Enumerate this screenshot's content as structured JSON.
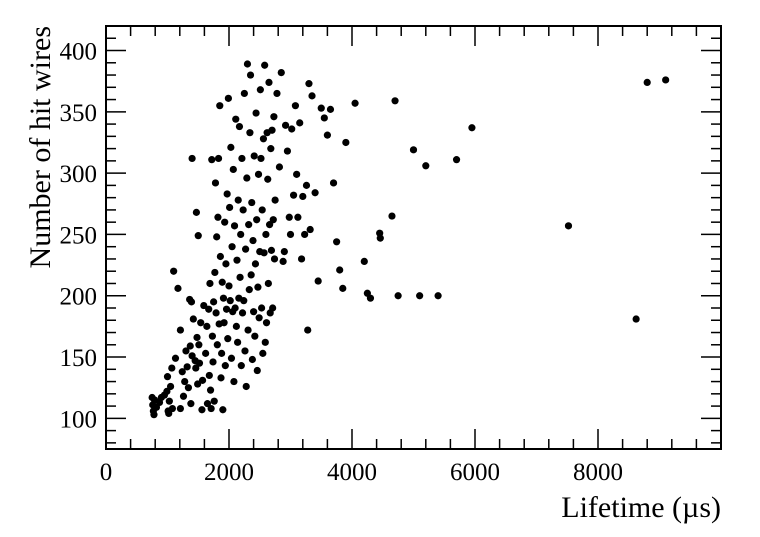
{
  "chart_data": {
    "type": "scatter",
    "xlabel": "Lifetime (µs)",
    "ylabel": "Number of hit wires",
    "xlim": [
      0,
      10000
    ],
    "ylim": [
      75,
      420
    ],
    "x_major_ticks": [
      0,
      2000,
      4000,
      6000,
      8000
    ],
    "x_tick_labels": [
      "0",
      "2000",
      "4000",
      "6000",
      "8000"
    ],
    "y_major_ticks": [
      100,
      150,
      200,
      250,
      300,
      350,
      400
    ],
    "y_tick_labels": [
      "100",
      "150",
      "200",
      "250",
      "300",
      "350",
      "400"
    ],
    "grid": false,
    "marker_color": "#000000",
    "points": [
      [
        750,
        117
      ],
      [
        760,
        111
      ],
      [
        770,
        106
      ],
      [
        780,
        103
      ],
      [
        790,
        115
      ],
      [
        820,
        109
      ],
      [
        870,
        113
      ],
      [
        900,
        117
      ],
      [
        950,
        119
      ],
      [
        990,
        122
      ],
      [
        1000,
        134
      ],
      [
        1010,
        106
      ],
      [
        1020,
        104
      ],
      [
        1030,
        114
      ],
      [
        1050,
        126
      ],
      [
        1070,
        141
      ],
      [
        1080,
        108
      ],
      [
        1100,
        220
      ],
      [
        1130,
        149
      ],
      [
        1170,
        206
      ],
      [
        1210,
        172
      ],
      [
        1210,
        108
      ],
      [
        1240,
        138
      ],
      [
        1260,
        118
      ],
      [
        1280,
        130
      ],
      [
        1300,
        155
      ],
      [
        1320,
        142
      ],
      [
        1340,
        125
      ],
      [
        1360,
        197
      ],
      [
        1370,
        159
      ],
      [
        1380,
        112
      ],
      [
        1390,
        195
      ],
      [
        1400,
        312
      ],
      [
        1400,
        151
      ],
      [
        1420,
        181
      ],
      [
        1450,
        147
      ],
      [
        1460,
        141
      ],
      [
        1470,
        268
      ],
      [
        1480,
        166
      ],
      [
        1490,
        128
      ],
      [
        1500,
        249
      ],
      [
        1510,
        160
      ],
      [
        1520,
        145
      ],
      [
        1540,
        178
      ],
      [
        1560,
        107
      ],
      [
        1570,
        131
      ],
      [
        1590,
        192
      ],
      [
        1620,
        153
      ],
      [
        1640,
        175
      ],
      [
        1650,
        112
      ],
      [
        1670,
        189
      ],
      [
        1680,
        135
      ],
      [
        1690,
        210
      ],
      [
        1700,
        123
      ],
      [
        1710,
        108
      ],
      [
        1720,
        311
      ],
      [
        1730,
        167
      ],
      [
        1740,
        146
      ],
      [
        1750,
        195
      ],
      [
        1760,
        114
      ],
      [
        1770,
        219
      ],
      [
        1780,
        292
      ],
      [
        1790,
        186
      ],
      [
        1800,
        248
      ],
      [
        1810,
        160
      ],
      [
        1820,
        264
      ],
      [
        1830,
        312
      ],
      [
        1840,
        177
      ],
      [
        1850,
        355
      ],
      [
        1860,
        232
      ],
      [
        1870,
        133
      ],
      [
        1880,
        153
      ],
      [
        1890,
        211
      ],
      [
        1900,
        107
      ],
      [
        1910,
        198
      ],
      [
        1920,
        178
      ],
      [
        1930,
        260
      ],
      [
        1940,
        143
      ],
      [
        1950,
        226
      ],
      [
        1960,
        189
      ],
      [
        1970,
        283
      ],
      [
        1980,
        165
      ],
      [
        1990,
        361
      ],
      [
        2000,
        208
      ],
      [
        2010,
        272
      ],
      [
        2020,
        196
      ],
      [
        2030,
        321
      ],
      [
        2040,
        149
      ],
      [
        2050,
        240
      ],
      [
        2060,
        187
      ],
      [
        2070,
        303
      ],
      [
        2080,
        130
      ],
      [
        2090,
        257
      ],
      [
        2100,
        190
      ],
      [
        2110,
        344
      ],
      [
        2120,
        175
      ],
      [
        2130,
        229
      ],
      [
        2140,
        162
      ],
      [
        2150,
        278
      ],
      [
        2160,
        198
      ],
      [
        2170,
        338
      ],
      [
        2180,
        215
      ],
      [
        2190,
        250
      ],
      [
        2200,
        143
      ],
      [
        2210,
        312
      ],
      [
        2220,
        186
      ],
      [
        2230,
        270
      ],
      [
        2240,
        196
      ],
      [
        2250,
        365
      ],
      [
        2260,
        155
      ],
      [
        2270,
        238
      ],
      [
        2280,
        126
      ],
      [
        2290,
        296
      ],
      [
        2300,
        389
      ],
      [
        2310,
        172
      ],
      [
        2320,
        258
      ],
      [
        2330,
        205
      ],
      [
        2340,
        333
      ],
      [
        2350,
        380
      ],
      [
        2360,
        217
      ],
      [
        2370,
        276
      ],
      [
        2380,
        148
      ],
      [
        2390,
        245
      ],
      [
        2400,
        187
      ],
      [
        2410,
        314
      ],
      [
        2420,
        167
      ],
      [
        2430,
        226
      ],
      [
        2440,
        349
      ],
      [
        2450,
        262
      ],
      [
        2460,
        139
      ],
      [
        2470,
        207
      ],
      [
        2480,
        299
      ],
      [
        2490,
        182
      ],
      [
        2500,
        236
      ],
      [
        2510,
        368
      ],
      [
        2520,
        312
      ],
      [
        2530,
        190
      ],
      [
        2540,
        270
      ],
      [
        2550,
        153
      ],
      [
        2560,
        328
      ],
      [
        2570,
        235
      ],
      [
        2580,
        388
      ],
      [
        2590,
        162
      ],
      [
        2600,
        250
      ],
      [
        2610,
        178
      ],
      [
        2620,
        333
      ],
      [
        2630,
        295
      ],
      [
        2640,
        210
      ],
      [
        2650,
        374
      ],
      [
        2660,
        258
      ],
      [
        2670,
        186
      ],
      [
        2680,
        320
      ],
      [
        2690,
        237
      ],
      [
        2700,
        335
      ],
      [
        2710,
        190
      ],
      [
        2720,
        262
      ],
      [
        2730,
        346
      ],
      [
        2740,
        230
      ],
      [
        2750,
        278
      ],
      [
        2780,
        365
      ],
      [
        2820,
        305
      ],
      [
        2850,
        382
      ],
      [
        2880,
        228
      ],
      [
        2900,
        236
      ],
      [
        2920,
        339
      ],
      [
        2950,
        318
      ],
      [
        2980,
        264
      ],
      [
        3000,
        250
      ],
      [
        3020,
        336
      ],
      [
        3050,
        282
      ],
      [
        3080,
        355
      ],
      [
        3100,
        299
      ],
      [
        3120,
        264
      ],
      [
        3150,
        341
      ],
      [
        3180,
        230
      ],
      [
        3200,
        281
      ],
      [
        3230,
        250
      ],
      [
        3260,
        290
      ],
      [
        3280,
        172
      ],
      [
        3300,
        373
      ],
      [
        3320,
        254
      ],
      [
        3350,
        363
      ],
      [
        3400,
        284
      ],
      [
        3450,
        212
      ],
      [
        3500,
        353
      ],
      [
        3550,
        345
      ],
      [
        3600,
        331
      ],
      [
        3650,
        352
      ],
      [
        3700,
        292
      ],
      [
        3750,
        244
      ],
      [
        3800,
        221
      ],
      [
        3850,
        206
      ],
      [
        3900,
        325
      ],
      [
        4050,
        357
      ],
      [
        4200,
        228
      ],
      [
        4250,
        202
      ],
      [
        4300,
        198
      ],
      [
        4450,
        251
      ],
      [
        4460,
        247
      ],
      [
        4650,
        265
      ],
      [
        4700,
        359
      ],
      [
        4750,
        200
      ],
      [
        5000,
        319
      ],
      [
        5100,
        200
      ],
      [
        5200,
        306
      ],
      [
        5400,
        200
      ],
      [
        5700,
        311
      ],
      [
        5950,
        337
      ],
      [
        7520,
        257
      ],
      [
        8620,
        181
      ],
      [
        8800,
        374
      ],
      [
        9100,
        376
      ]
    ]
  }
}
